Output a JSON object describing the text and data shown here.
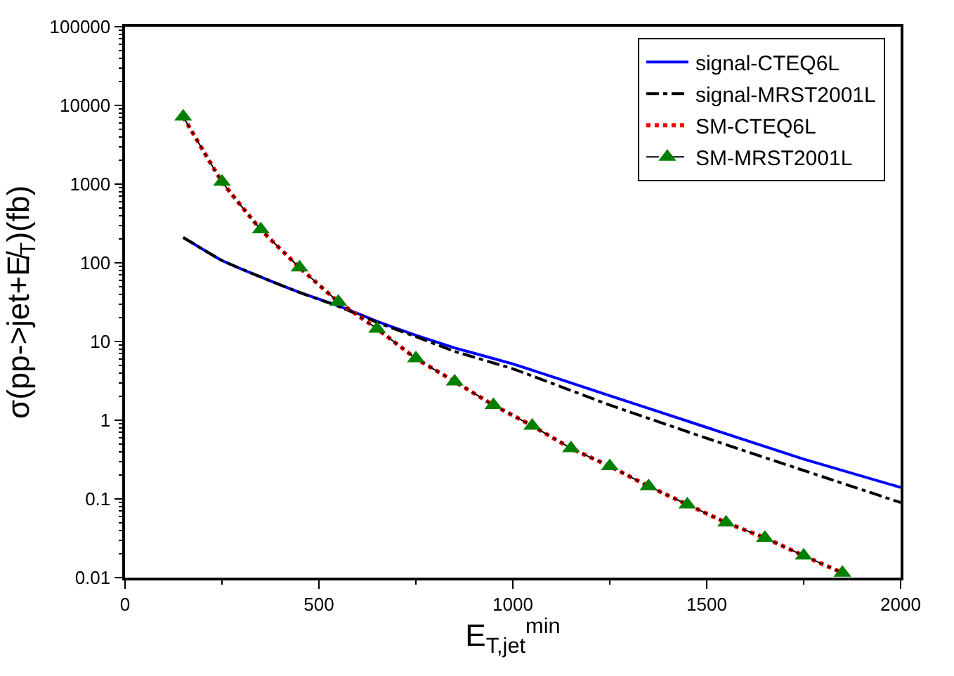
{
  "chart_data": {
    "type": "line",
    "xlabel": "E$_{T,jet}$$^{min}$",
    "ylabel": "σ(pp->jet+E̸$_{T}$)(fb)",
    "xlim": [
      0,
      2000
    ],
    "xticks": [
      0,
      500,
      1000,
      1500,
      2000
    ],
    "ylim": [
      0.01,
      100000
    ],
    "yticks": [
      0.01,
      0.1,
      1,
      10,
      100,
      1000,
      10000,
      100000
    ],
    "log": "y",
    "legend": "top right",
    "series": [
      {
        "name": "signal-CTEQ6L",
        "color": "#0000ff",
        "line_style": "solid",
        "marker": "none",
        "x": [
          150,
          250,
          350,
          450,
          550,
          650,
          750,
          850,
          1000,
          1250,
          1500,
          1750,
          2000
        ],
        "values": [
          210,
          107,
          66,
          42,
          28.5,
          18,
          12,
          8.3,
          5.2,
          2.05,
          0.81,
          0.32,
          0.14
        ]
      },
      {
        "name": "signal-MRST2001L",
        "color": "#000000",
        "line_style": "dashdot",
        "marker": "none",
        "x": [
          150,
          250,
          350,
          450,
          550,
          650,
          750,
          850,
          1000,
          1250,
          1500,
          1750,
          2000
        ],
        "values": [
          210,
          107,
          66,
          42,
          28,
          17.5,
          11.5,
          7.5,
          4.5,
          1.56,
          0.59,
          0.23,
          0.09
        ]
      },
      {
        "name": "SM-CTEQ6L",
        "color": "#ff0000",
        "line_style": "dotted",
        "marker": "none",
        "x": [
          150,
          250,
          350,
          450,
          550,
          650,
          750,
          850,
          950,
          1050,
          1150,
          1250,
          1350,
          1450,
          1550,
          1650,
          1750,
          1850
        ],
        "values": [
          7200,
          1070,
          265,
          87,
          32,
          14.5,
          6.1,
          3.1,
          1.56,
          0.85,
          0.44,
          0.26,
          0.145,
          0.085,
          0.05,
          0.032,
          0.019,
          0.0115
        ]
      },
      {
        "name": "SM-MRST2001L",
        "color": "#008000",
        "line_style": "dashdot",
        "marker": "triangle",
        "x": [
          150,
          250,
          350,
          450,
          550,
          650,
          750,
          850,
          950,
          1050,
          1150,
          1250,
          1350,
          1450,
          1550,
          1650,
          1750,
          1850
        ],
        "values": [
          7200,
          1070,
          265,
          87,
          32,
          14.5,
          6.1,
          3.1,
          1.56,
          0.85,
          0.44,
          0.26,
          0.145,
          0.085,
          0.05,
          0.032,
          0.019,
          0.0115
        ]
      }
    ]
  }
}
